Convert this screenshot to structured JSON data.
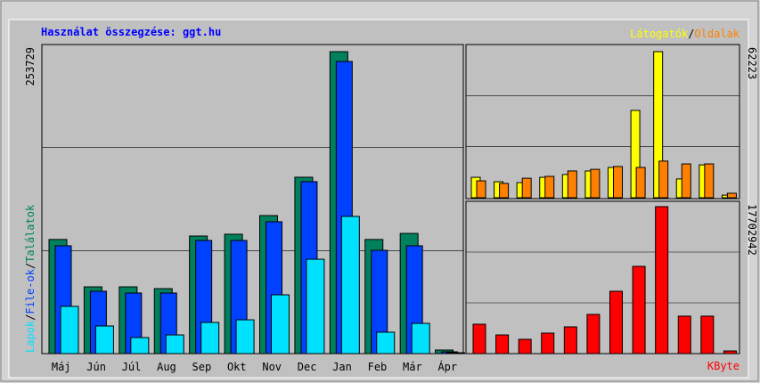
{
  "chart_data": [
    {
      "type": "bar",
      "title": "Használat összegzése: ggt.hu",
      "categories": [
        "Máj",
        "Jún",
        "Júl",
        "Aug",
        "Sep",
        "Okt",
        "Nov",
        "Dec",
        "Jan",
        "Feb",
        "Már",
        "Ápr"
      ],
      "separator": "/",
      "series": [
        {
          "name": "Találatok",
          "color": "#00805c",
          "values": [
            95900,
            56100,
            56100,
            54600,
            98800,
            100300,
            116000,
            148200,
            253729,
            95900,
            101000,
            3000
          ]
        },
        {
          "name": "File-ok",
          "color": "#0040ff",
          "values": [
            90600,
            52400,
            50900,
            50900,
            95100,
            95100,
            110800,
            144500,
            245500,
            86800,
            90600,
            1500
          ]
        },
        {
          "name": "Lapok",
          "color": "#00e0ff",
          "values": [
            39700,
            23200,
            13500,
            15700,
            26200,
            28400,
            49400,
            79300,
            115300,
            18000,
            25400,
            750
          ]
        }
      ],
      "ylim": [
        0,
        253729
      ],
      "yticks": [
        253729
      ],
      "grid": true
    },
    {
      "type": "bar",
      "series": [
        {
          "name": "Látogatók",
          "color": "#ffff00",
          "values": [
            8700,
            6800,
            6450,
            8700,
            9900,
            11400,
            12900,
            37200,
            62223,
            8000,
            14000,
            1100
          ]
        },
        {
          "name": "Oldalak",
          "color": "#ff8000",
          "values": [
            7200,
            6100,
            8300,
            9100,
            11400,
            12100,
            13300,
            12900,
            15600,
            14400,
            14400,
            1900
          ]
        }
      ],
      "ylim": [
        0,
        62223
      ],
      "yticks": [
        62223
      ],
      "grid": true
    },
    {
      "type": "bar",
      "series": [
        {
          "name": "KByte",
          "color": "#ff0000",
          "values": [
            3540000,
            2250000,
            1720000,
            2470000,
            3220000,
            4720000,
            7510000,
            10510000,
            17702942,
            4510000,
            4510000,
            320000
          ]
        }
      ],
      "ylim": [
        0,
        17702942
      ],
      "yticks": [
        17702942
      ],
      "grid": true
    }
  ]
}
